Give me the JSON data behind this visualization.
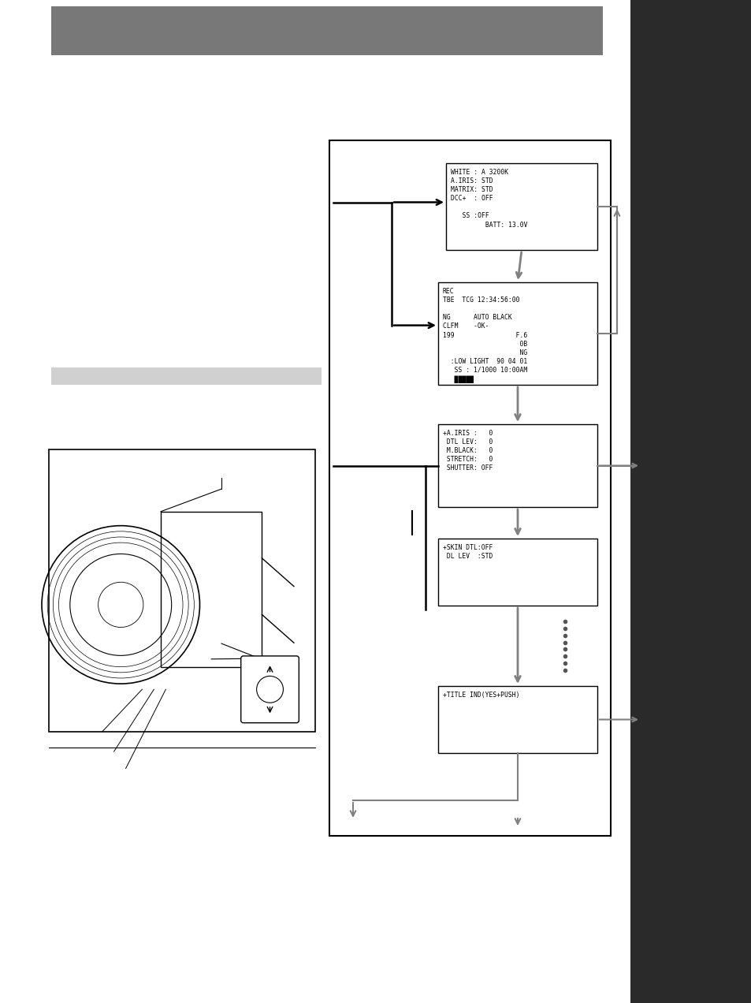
{
  "page_bg": "#ffffff",
  "header_bg": "#787878",
  "right_side_bg": "#2a2a2a",
  "box1_text": "WHITE : A 3200K\nA.IRIS: STD\nMATRIX: STD\nDCC+  : OFF\n\n   SS :OFF\n         BATT: 13.0V",
  "box2_text": "REC\nTBE  TCG 12:34:56:00\n\nNG      AUTO BLACK\nCLFM    -OK-\n199                F.6\n                    0B\n                    NG\n  :LOW LIGHT  90 04 01\n   SS : 1/1000 10:00AM\n   █████",
  "box3_text": "+A.IRIS :   0\n DTL LEV:   0\n M.BLACK:   0\n STRETCH:   0\n SHUTTER: OFF",
  "box4_text": "+SKIN DTL:OFF\n DL LEV  :STD",
  "box5_text": "+TITLE IND(YES+PUSH)",
  "gray_section_label_color": "#d0d0d0",
  "arrow_color_black": "#000000",
  "arrow_color_gray": "#808080",
  "n_dots": 8
}
